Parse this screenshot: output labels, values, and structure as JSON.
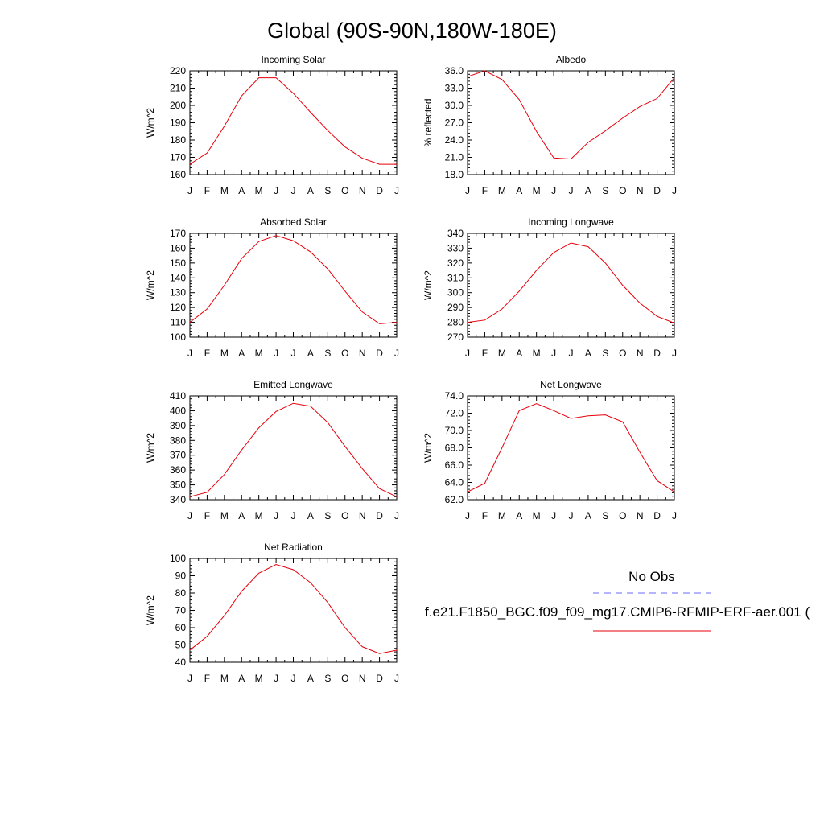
{
  "title": "Global (90S-90N,180W-180E)",
  "legend": {
    "obs_label": "No Obs",
    "obs_color": "#6a6aff",
    "model_label": "f.e21.F1850_BGC.f09_f09_mg17.CMIP6-RFMIP-ERF-aer.001 (",
    "model_color": "#e8000b"
  },
  "chart_data": [
    {
      "type": "line",
      "title": "Incoming Solar",
      "ylabel": "W/m^2",
      "x": [
        "J",
        "F",
        "M",
        "A",
        "M",
        "J",
        "J",
        "A",
        "S",
        "O",
        "N",
        "D",
        "J"
      ],
      "ylim": [
        160,
        220
      ],
      "yticks": [
        "160",
        "170",
        "180",
        "190",
        "200",
        "210",
        "220"
      ],
      "series": [
        {
          "values": [
            166,
            172.5,
            188,
            205.5,
            216,
            216,
            207,
            196,
            185.5,
            176,
            169.5,
            166,
            166
          ]
        }
      ]
    },
    {
      "type": "line",
      "title": "Albedo",
      "ylabel": "% reflected",
      "x": [
        "J",
        "F",
        "M",
        "A",
        "M",
        "J",
        "J",
        "A",
        "S",
        "O",
        "N",
        "D",
        "J"
      ],
      "ylim": [
        18,
        36
      ],
      "yticks": [
        "18.0",
        "21.0",
        "24.0",
        "27.0",
        "30.0",
        "33.0",
        "36.0"
      ],
      "series": [
        {
          "values": [
            35.0,
            36.0,
            34.5,
            31.0,
            25.5,
            20.9,
            20.7,
            23.6,
            25.6,
            27.8,
            29.8,
            31.2,
            34.8
          ]
        }
      ]
    },
    {
      "type": "line",
      "title": "Absorbed Solar",
      "ylabel": "W/m^2",
      "x": [
        "J",
        "F",
        "M",
        "A",
        "M",
        "J",
        "J",
        "A",
        "S",
        "O",
        "N",
        "D",
        "J"
      ],
      "ylim": [
        100,
        170
      ],
      "yticks": [
        "100",
        "110",
        "120",
        "130",
        "140",
        "150",
        "160",
        "170"
      ],
      "series": [
        {
          "values": [
            110,
            119,
            135,
            153,
            164.5,
            168.5,
            165,
            157.5,
            146,
            131,
            117,
            109,
            110
          ]
        }
      ]
    },
    {
      "type": "line",
      "title": "Incoming Longwave",
      "ylabel": "W/m^2",
      "x": [
        "J",
        "F",
        "M",
        "A",
        "M",
        "J",
        "J",
        "A",
        "S",
        "O",
        "N",
        "D",
        "J"
      ],
      "ylim": [
        270,
        340
      ],
      "yticks": [
        "270",
        "280",
        "290",
        "300",
        "310",
        "320",
        "330",
        "340"
      ],
      "series": [
        {
          "values": [
            280,
            281.5,
            289,
            301,
            315,
            327,
            333.5,
            331,
            320,
            305,
            293,
            284,
            279.5
          ]
        }
      ]
    },
    {
      "type": "line",
      "title": "Emitted Longwave",
      "ylabel": "W/m^2",
      "x": [
        "J",
        "F",
        "M",
        "A",
        "M",
        "J",
        "J",
        "A",
        "S",
        "O",
        "N",
        "D",
        "J"
      ],
      "ylim": [
        340,
        410
      ],
      "yticks": [
        "340",
        "350",
        "360",
        "370",
        "380",
        "390",
        "400",
        "410"
      ],
      "series": [
        {
          "values": [
            342,
            345,
            357,
            373.5,
            388.5,
            399.5,
            405,
            403,
            392,
            376,
            361,
            347.5,
            342
          ]
        }
      ]
    },
    {
      "type": "line",
      "title": "Net Longwave",
      "ylabel": "W/m^2",
      "x": [
        "J",
        "F",
        "M",
        "A",
        "M",
        "J",
        "J",
        "A",
        "S",
        "O",
        "N",
        "D",
        "J"
      ],
      "ylim": [
        62,
        74
      ],
      "yticks": [
        "62.0",
        "64.0",
        "66.0",
        "68.0",
        "70.0",
        "72.0",
        "74.0"
      ],
      "series": [
        {
          "values": [
            62.9,
            63.9,
            68.0,
            72.3,
            73.1,
            72.3,
            71.4,
            71.7,
            71.8,
            71.0,
            67.5,
            64.2,
            62.9
          ]
        }
      ]
    },
    {
      "type": "line",
      "title": "Net Radiation",
      "ylabel": "W/m^2",
      "x": [
        "J",
        "F",
        "M",
        "A",
        "M",
        "J",
        "J",
        "A",
        "S",
        "O",
        "N",
        "D",
        "J"
      ],
      "ylim": [
        40,
        100
      ],
      "yticks": [
        "40",
        "50",
        "60",
        "70",
        "80",
        "90",
        "100"
      ],
      "series": [
        {
          "values": [
            47,
            55,
            67,
            81,
            91.5,
            96.5,
            93.5,
            86,
            74.5,
            60,
            49,
            45,
            47
          ]
        }
      ]
    }
  ]
}
